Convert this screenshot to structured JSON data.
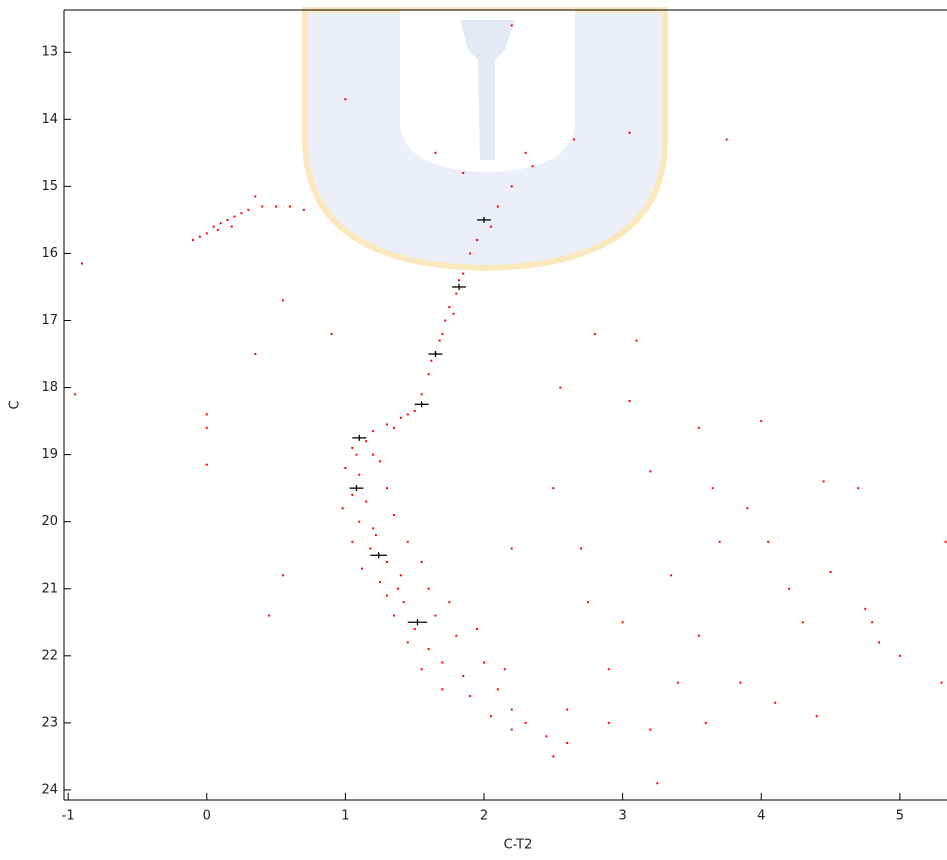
{
  "chart_data": {
    "type": "scatter",
    "x_label": "C-T2",
    "y_label": "C",
    "xlim": [
      -1.03,
      5.34
    ],
    "ylim": [
      12.37,
      24.15
    ],
    "y_inverted": true,
    "xticks": [
      -1,
      0,
      1,
      2,
      3,
      4,
      5
    ],
    "yticks": [
      13,
      14,
      15,
      16,
      17,
      18,
      19,
      20,
      21,
      22,
      23,
      24
    ],
    "series": [
      {
        "color": "#ff0000",
        "x": [
          1.05,
          1.15,
          1.2,
          1.0,
          1.1,
          1.25,
          1.05,
          1.15,
          0.98,
          1.3,
          1.1,
          1.2,
          1.35,
          1.05,
          1.18,
          1.3,
          1.45,
          1.12,
          1.25,
          1.4,
          1.55,
          1.3,
          1.42,
          1.6,
          1.35,
          1.5,
          1.65,
          1.75,
          1.45,
          1.6,
          1.8,
          1.95,
          1.7,
          1.85,
          2.0,
          2.1,
          1.9,
          2.2,
          2.05,
          2.3,
          2.45,
          2.6,
          2.5,
          2.2,
          1.7,
          1.55,
          2.15,
          1.38,
          1.22,
          1.08,
          1.2,
          1.3,
          1.4,
          1.5,
          1.35,
          1.45,
          1.55,
          1.6,
          1.62,
          1.68,
          1.72,
          1.75,
          1.8,
          1.85,
          1.82,
          1.65,
          1.7,
          1.78,
          1.9,
          1.95,
          2.05,
          2.1,
          2.2,
          2.35,
          -0.1,
          -0.05,
          0.0,
          0.05,
          0.1,
          0.15,
          0.2,
          0.25,
          0.3,
          0.4,
          0.5,
          0.6,
          0.7,
          0.08,
          0.18,
          0.35,
          -0.9,
          -0.95,
          0.0,
          0.0,
          0.0,
          0.55,
          0.9,
          0.35,
          0.45,
          0.55,
          1.0,
          1.65,
          1.85,
          2.3,
          2.65,
          3.05,
          3.75,
          2.2,
          2.8,
          3.1,
          2.55,
          3.05,
          3.2,
          3.65,
          4.0,
          3.55,
          3.35,
          3.7,
          3.9,
          4.05,
          4.45,
          4.7,
          4.2,
          4.5,
          4.75,
          4.85,
          5.0,
          5.3,
          5.33,
          4.1,
          3.85,
          3.6,
          3.2,
          2.9,
          3.4,
          4.4,
          3.25,
          4.8,
          4.3,
          3.0,
          2.7,
          2.5,
          2.2,
          2.9,
          3.55,
          2.6,
          2.75
        ],
        "y": [
          18.9,
          18.8,
          19.0,
          19.2,
          19.3,
          19.1,
          19.6,
          19.7,
          19.8,
          19.5,
          20.0,
          20.1,
          19.9,
          20.3,
          20.4,
          20.6,
          20.3,
          20.7,
          20.9,
          20.8,
          20.6,
          21.1,
          21.2,
          21.0,
          21.4,
          21.6,
          21.4,
          21.2,
          21.8,
          21.9,
          21.7,
          21.6,
          22.1,
          22.3,
          22.1,
          22.5,
          22.6,
          22.8,
          22.9,
          23.0,
          23.2,
          23.3,
          23.5,
          23.1,
          22.5,
          22.2,
          22.2,
          21.0,
          20.2,
          19.0,
          18.65,
          18.55,
          18.45,
          18.35,
          18.6,
          18.4,
          18.1,
          17.8,
          17.6,
          17.3,
          17.0,
          16.8,
          16.6,
          16.3,
          16.4,
          17.5,
          17.2,
          16.9,
          16.0,
          15.8,
          15.6,
          15.3,
          15.0,
          14.7,
          15.8,
          15.75,
          15.7,
          15.6,
          15.55,
          15.5,
          15.45,
          15.4,
          15.35,
          15.3,
          15.3,
          15.3,
          15.35,
          15.65,
          15.6,
          15.15,
          16.15,
          18.1,
          18.4,
          18.6,
          19.15,
          16.7,
          17.2,
          17.5,
          21.4,
          20.8,
          13.7,
          14.5,
          14.8,
          14.5,
          14.3,
          14.2,
          14.3,
          12.6,
          17.2,
          17.3,
          18.0,
          18.2,
          19.25,
          19.5,
          18.5,
          18.6,
          20.8,
          20.3,
          19.8,
          20.3,
          19.4,
          19.5,
          21.0,
          20.75,
          21.3,
          21.8,
          22.0,
          22.4,
          20.3,
          22.7,
          22.4,
          23.0,
          23.1,
          23.0,
          22.4,
          22.9,
          23.9,
          21.5,
          21.5,
          21.5,
          20.4,
          19.5,
          20.4,
          22.2,
          21.7,
          22.8,
          21.2
        ]
      }
    ],
    "errorbars": {
      "color": "#000000",
      "x": [
        2.0,
        1.82,
        1.65,
        1.55,
        1.1,
        1.08,
        1.24,
        1.52
      ],
      "y": [
        15.5,
        16.5,
        17.5,
        18.25,
        18.75,
        19.5,
        20.5,
        21.5
      ],
      "xerr": [
        0.05,
        0.05,
        0.05,
        0.05,
        0.05,
        0.05,
        0.06,
        0.07
      ]
    }
  }
}
